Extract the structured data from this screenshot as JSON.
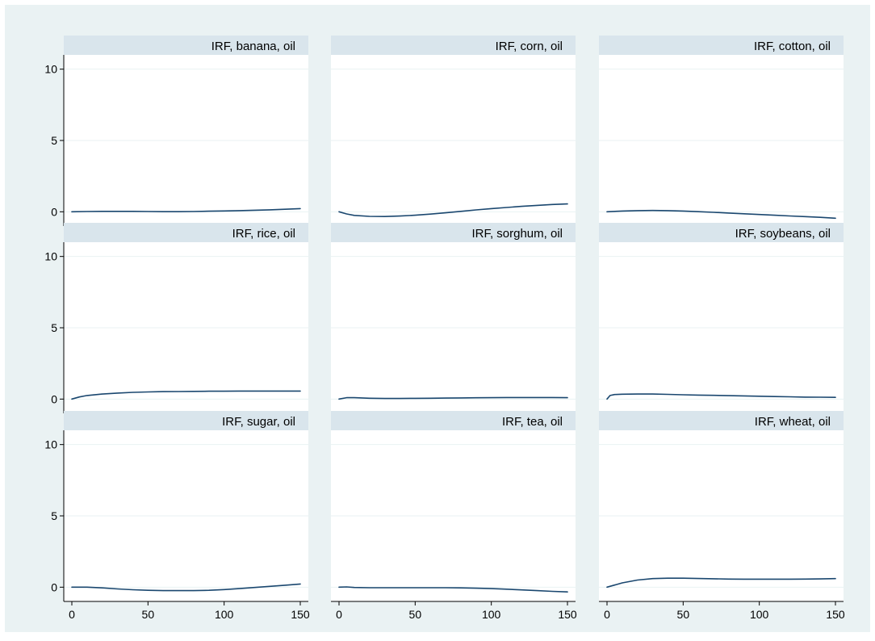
{
  "chart_data": {
    "type": "line",
    "layout": "3x3 small multiples",
    "grid": true,
    "xlim": [
      0,
      150
    ],
    "ylim": [
      -1,
      11
    ],
    "x_ticks": [
      0,
      50,
      100,
      150
    ],
    "y_ticks": [
      0,
      5,
      10
    ],
    "colors": {
      "outer_background": "#eaf2f3",
      "plot_background": "#ffffff",
      "strip": "#d9e5ec",
      "gridline": "#eaf2f3",
      "line": "#1a476f",
      "axis": "#000000"
    },
    "panels": [
      {
        "title": "IRF, banana, oil",
        "x": [
          0,
          10,
          20,
          30,
          40,
          50,
          60,
          70,
          80,
          90,
          100,
          110,
          120,
          130,
          140,
          150
        ],
        "y": [
          0,
          0.02,
          0.03,
          0.03,
          0.03,
          0.02,
          0.01,
          0.01,
          0.02,
          0.04,
          0.06,
          0.08,
          0.11,
          0.14,
          0.18,
          0.22
        ]
      },
      {
        "title": "IRF, corn, oil",
        "x": [
          0,
          5,
          10,
          20,
          30,
          40,
          50,
          60,
          70,
          80,
          90,
          100,
          110,
          120,
          130,
          140,
          150
        ],
        "y": [
          0,
          -0.15,
          -0.25,
          -0.32,
          -0.33,
          -0.3,
          -0.24,
          -0.16,
          -0.07,
          0.03,
          0.13,
          0.22,
          0.3,
          0.38,
          0.45,
          0.51,
          0.55
        ]
      },
      {
        "title": "IRF, cotton, oil",
        "x": [
          0,
          10,
          20,
          30,
          40,
          50,
          60,
          70,
          80,
          90,
          100,
          110,
          120,
          130,
          140,
          150
        ],
        "y": [
          0,
          0.05,
          0.08,
          0.09,
          0.08,
          0.05,
          0.01,
          -0.04,
          -0.09,
          -0.14,
          -0.19,
          -0.24,
          -0.29,
          -0.34,
          -0.39,
          -0.45
        ]
      },
      {
        "title": "IRF, rice, oil",
        "x": [
          0,
          5,
          10,
          20,
          30,
          40,
          50,
          60,
          70,
          80,
          90,
          100,
          110,
          120,
          130,
          140,
          150
        ],
        "y": [
          0,
          0.15,
          0.25,
          0.35,
          0.42,
          0.47,
          0.5,
          0.52,
          0.53,
          0.54,
          0.55,
          0.55,
          0.56,
          0.56,
          0.56,
          0.56,
          0.56
        ]
      },
      {
        "title": "IRF, sorghum, oil",
        "x": [
          0,
          5,
          10,
          20,
          30,
          40,
          50,
          60,
          70,
          80,
          90,
          100,
          110,
          120,
          130,
          140,
          150
        ],
        "y": [
          0,
          0.1,
          0.1,
          0.06,
          0.04,
          0.04,
          0.05,
          0.06,
          0.07,
          0.08,
          0.09,
          0.1,
          0.11,
          0.11,
          0.11,
          0.11,
          0.1
        ]
      },
      {
        "title": "IRF, soybeans, oil",
        "x": [
          0,
          2,
          5,
          10,
          20,
          30,
          40,
          50,
          60,
          70,
          80,
          90,
          100,
          110,
          120,
          130,
          140,
          150
        ],
        "y": [
          0,
          0.25,
          0.32,
          0.34,
          0.35,
          0.35,
          0.33,
          0.3,
          0.28,
          0.26,
          0.24,
          0.22,
          0.2,
          0.18,
          0.16,
          0.14,
          0.13,
          0.12
        ]
      },
      {
        "title": "IRF, sugar, oil",
        "x": [
          0,
          10,
          20,
          30,
          40,
          50,
          60,
          70,
          80,
          90,
          100,
          110,
          120,
          130,
          140,
          150
        ],
        "y": [
          0,
          0,
          -0.05,
          -0.12,
          -0.18,
          -0.22,
          -0.24,
          -0.24,
          -0.24,
          -0.22,
          -0.17,
          -0.1,
          -0.02,
          0.06,
          0.14,
          0.22
        ]
      },
      {
        "title": "IRF, tea, oil",
        "x": [
          0,
          5,
          10,
          20,
          30,
          40,
          50,
          60,
          70,
          80,
          90,
          100,
          110,
          120,
          130,
          140,
          150
        ],
        "y": [
          0,
          0.02,
          -0.02,
          -0.04,
          -0.04,
          -0.04,
          -0.04,
          -0.04,
          -0.04,
          -0.05,
          -0.07,
          -0.1,
          -0.14,
          -0.19,
          -0.24,
          -0.29,
          -0.33
        ]
      },
      {
        "title": "IRF, wheat, oil",
        "x": [
          0,
          5,
          10,
          20,
          30,
          40,
          50,
          60,
          70,
          80,
          90,
          100,
          110,
          120,
          130,
          140,
          150
        ],
        "y": [
          0,
          0.15,
          0.3,
          0.5,
          0.6,
          0.63,
          0.63,
          0.61,
          0.59,
          0.57,
          0.56,
          0.56,
          0.56,
          0.56,
          0.57,
          0.58,
          0.6
        ]
      }
    ]
  }
}
